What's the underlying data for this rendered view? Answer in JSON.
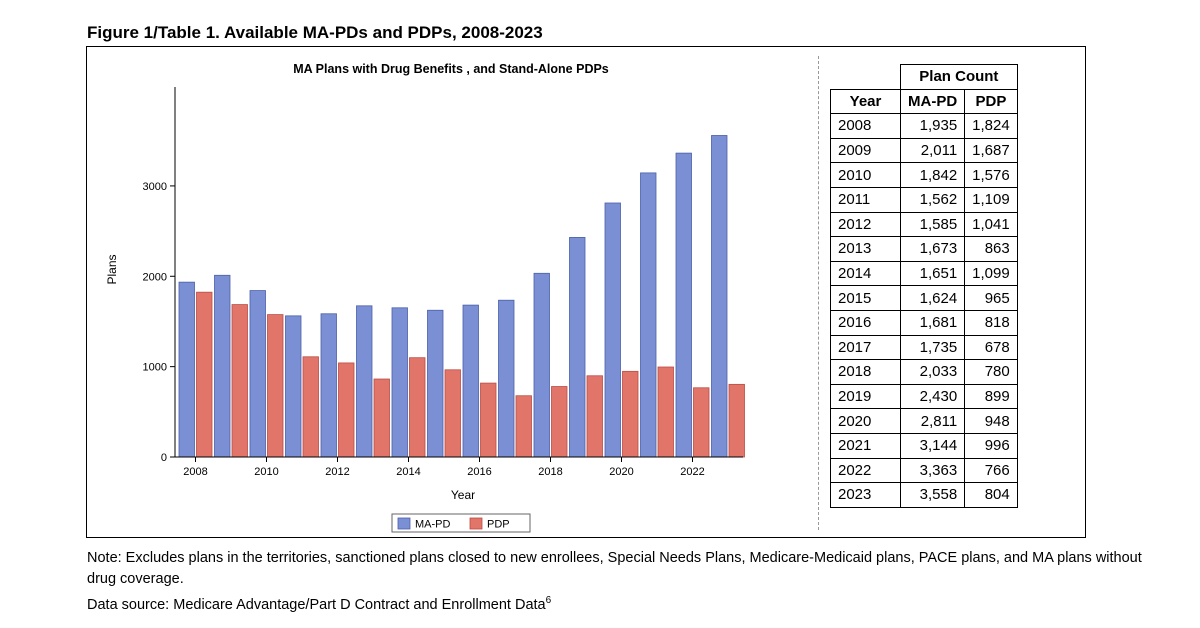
{
  "figure_title": "Figure 1/Table 1. Available MA-PDs and PDPs, 2008-2023",
  "colors": {
    "mapd": "#7b8fd4",
    "pdp": "#e2756a",
    "axis": "#000000"
  },
  "chart_data": {
    "type": "bar",
    "title": "MA Plans with Drug Benefits , and Stand-Alone PDPs",
    "xlabel": "Year",
    "ylabel": "Plans",
    "categories": [
      "2008",
      "2009",
      "2010",
      "2011",
      "2012",
      "2013",
      "2014",
      "2015",
      "2016",
      "2017",
      "2018",
      "2019",
      "2020",
      "2021",
      "2022",
      "2023"
    ],
    "series": [
      {
        "name": "MA-PD",
        "values": [
          1935,
          2011,
          1842,
          1562,
          1585,
          1673,
          1651,
          1624,
          1681,
          1735,
          2033,
          2430,
          2811,
          3144,
          3363,
          3558
        ]
      },
      {
        "name": "PDP",
        "values": [
          1824,
          1687,
          1576,
          1109,
          1041,
          863,
          1099,
          965,
          818,
          678,
          780,
          899,
          948,
          996,
          766,
          804
        ]
      }
    ],
    "x_tick_labels": [
      "2008",
      "2010",
      "2012",
      "2014",
      "2016",
      "2018",
      "2020",
      "2022"
    ],
    "y_ticks": [
      0,
      1000,
      2000,
      3000
    ],
    "ylim": [
      0,
      4150
    ],
    "grid": false,
    "legend": "bottom-center"
  },
  "table": {
    "group_header": "Plan Count",
    "headers": [
      "Year",
      "MA-PD",
      "PDP"
    ],
    "rows": [
      [
        "2008",
        "1,935",
        "1,824"
      ],
      [
        "2009",
        "2,011",
        "1,687"
      ],
      [
        "2010",
        "1,842",
        "1,576"
      ],
      [
        "2011",
        "1,562",
        "1,109"
      ],
      [
        "2012",
        "1,585",
        "1,041"
      ],
      [
        "2013",
        "1,673",
        "863"
      ],
      [
        "2014",
        "1,651",
        "1,099"
      ],
      [
        "2015",
        "1,624",
        "965"
      ],
      [
        "2016",
        "1,681",
        "818"
      ],
      [
        "2017",
        "1,735",
        "678"
      ],
      [
        "2018",
        "2,033",
        "780"
      ],
      [
        "2019",
        "2,430",
        "899"
      ],
      [
        "2020",
        "2,811",
        "948"
      ],
      [
        "2021",
        "3,144",
        "996"
      ],
      [
        "2022",
        "3,363",
        "766"
      ],
      [
        "2023",
        "3,558",
        "804"
      ]
    ]
  },
  "note": {
    "line1": "Note: Excludes plans in the territories, sanctioned plans closed to new enrollees, Special Needs Plans, Medicare-Medicaid plans, PACE plans, and MA plans without drug coverage.",
    "source": "Data source: Medicare Advantage/Part D Contract and Enrollment Data",
    "source_sup": "6"
  }
}
